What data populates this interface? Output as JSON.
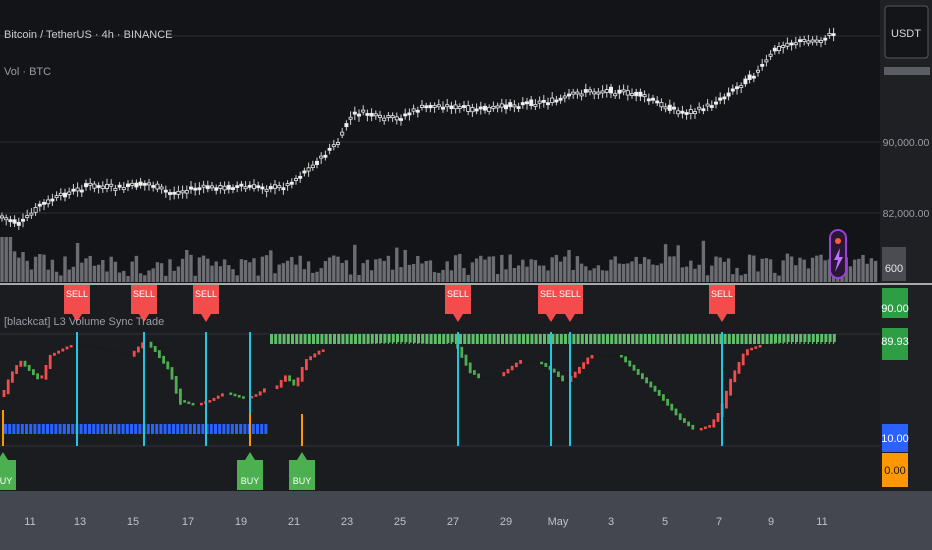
{
  "header": {
    "symbol_title": "Bitcoin / TetherUS · 4h · BINANCE",
    "volume_legend": "Vol · BTC"
  },
  "indicator": {
    "title": "[blackcat] L3 Volume Sync Trade"
  },
  "price_axis": {
    "currency_button": "USDT",
    "tick_labels": [
      "90,000.00",
      "82,000.00"
    ],
    "volume_badge": "600"
  },
  "indicator_axis": {
    "badges": [
      {
        "text": "90.00",
        "color": "#2e9e44"
      },
      {
        "text": "89.93",
        "color": "#2e9e44"
      },
      {
        "text": "10.00",
        "color": "#2962ff"
      },
      {
        "text": "0.00",
        "color": "#ff9800"
      }
    ]
  },
  "time_axis": {
    "labels": [
      "11",
      "13",
      "15",
      "17",
      "19",
      "21",
      "23",
      "25",
      "27",
      "29",
      "May",
      "3",
      "5",
      "7",
      "9",
      "11"
    ]
  },
  "signals": {
    "sell": [
      "SELL",
      "SELL",
      "SELL",
      "SELL",
      "SELL",
      "SELL",
      "SELL"
    ],
    "buy": [
      "BUY",
      "BUY",
      "BUY"
    ]
  },
  "icons": {
    "flash": "lightning-bolt-icon"
  },
  "colors": {
    "sell": "#f44c4c",
    "buy": "#4caf50",
    "signal_line": "#21c7e0",
    "oversold_band": "#2962ff",
    "overbought_band": "#5fbf68",
    "buy_stem": "#ff9800"
  }
}
